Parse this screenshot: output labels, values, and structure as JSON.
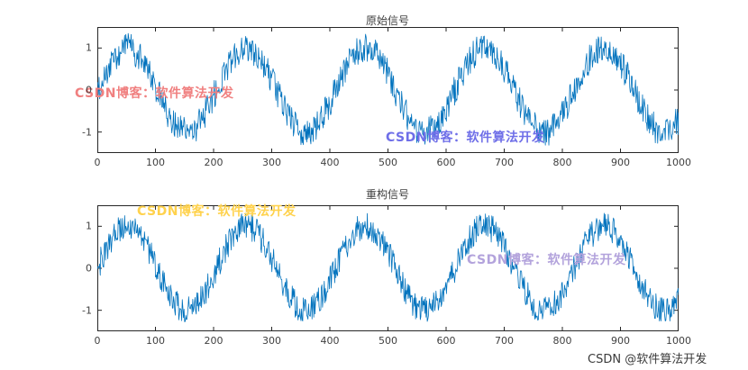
{
  "figure": {
    "background": "#ffffff",
    "watermarks": [
      {
        "text": "CSDN博客：软件算法开发",
        "color": "#f08080"
      },
      {
        "text": "CSDN博客：软件算法开发",
        "color": "#6f6fe8"
      },
      {
        "text": "CSDN博客：软件算法开发",
        "color": "#ffd24d"
      },
      {
        "text": "CSDN博客：软件算法开发",
        "color": "#b3a3dc"
      }
    ],
    "footer_watermark": {
      "text": "CSDN @软件算法开发",
      "color": "#3a3a3a"
    }
  },
  "chart_data": [
    {
      "type": "line",
      "title": "原始信号",
      "xlabel": "",
      "ylabel": "",
      "xlim": [
        0,
        1000
      ],
      "ylim": [
        -1.5,
        1.5
      ],
      "x_ticks": [
        0,
        100,
        200,
        300,
        400,
        500,
        600,
        700,
        800,
        900,
        1000
      ],
      "y_ticks": [
        -1,
        0,
        1
      ],
      "grid": false,
      "legend": null,
      "line_color": "#0072BD",
      "n_points": 1000,
      "signal": {
        "kind": "sine_plus_noise",
        "amplitude": 1.0,
        "period": 205,
        "phase_rad": 0,
        "noise_amplitude": 0.35,
        "seed": 20240501
      }
    },
    {
      "type": "line",
      "title": "重构信号",
      "xlabel": "",
      "ylabel": "",
      "xlim": [
        0,
        1000
      ],
      "ylim": [
        -1.5,
        1.5
      ],
      "x_ticks": [
        0,
        100,
        200,
        300,
        400,
        500,
        600,
        700,
        800,
        900,
        1000
      ],
      "y_ticks": [
        -1,
        0,
        1
      ],
      "grid": false,
      "legend": null,
      "line_color": "#0072BD",
      "n_points": 1000,
      "signal": {
        "kind": "sine_plus_noise",
        "amplitude": 1.0,
        "period": 205,
        "phase_rad": 0,
        "noise_amplitude": 0.33,
        "seed": 7391
      }
    }
  ]
}
